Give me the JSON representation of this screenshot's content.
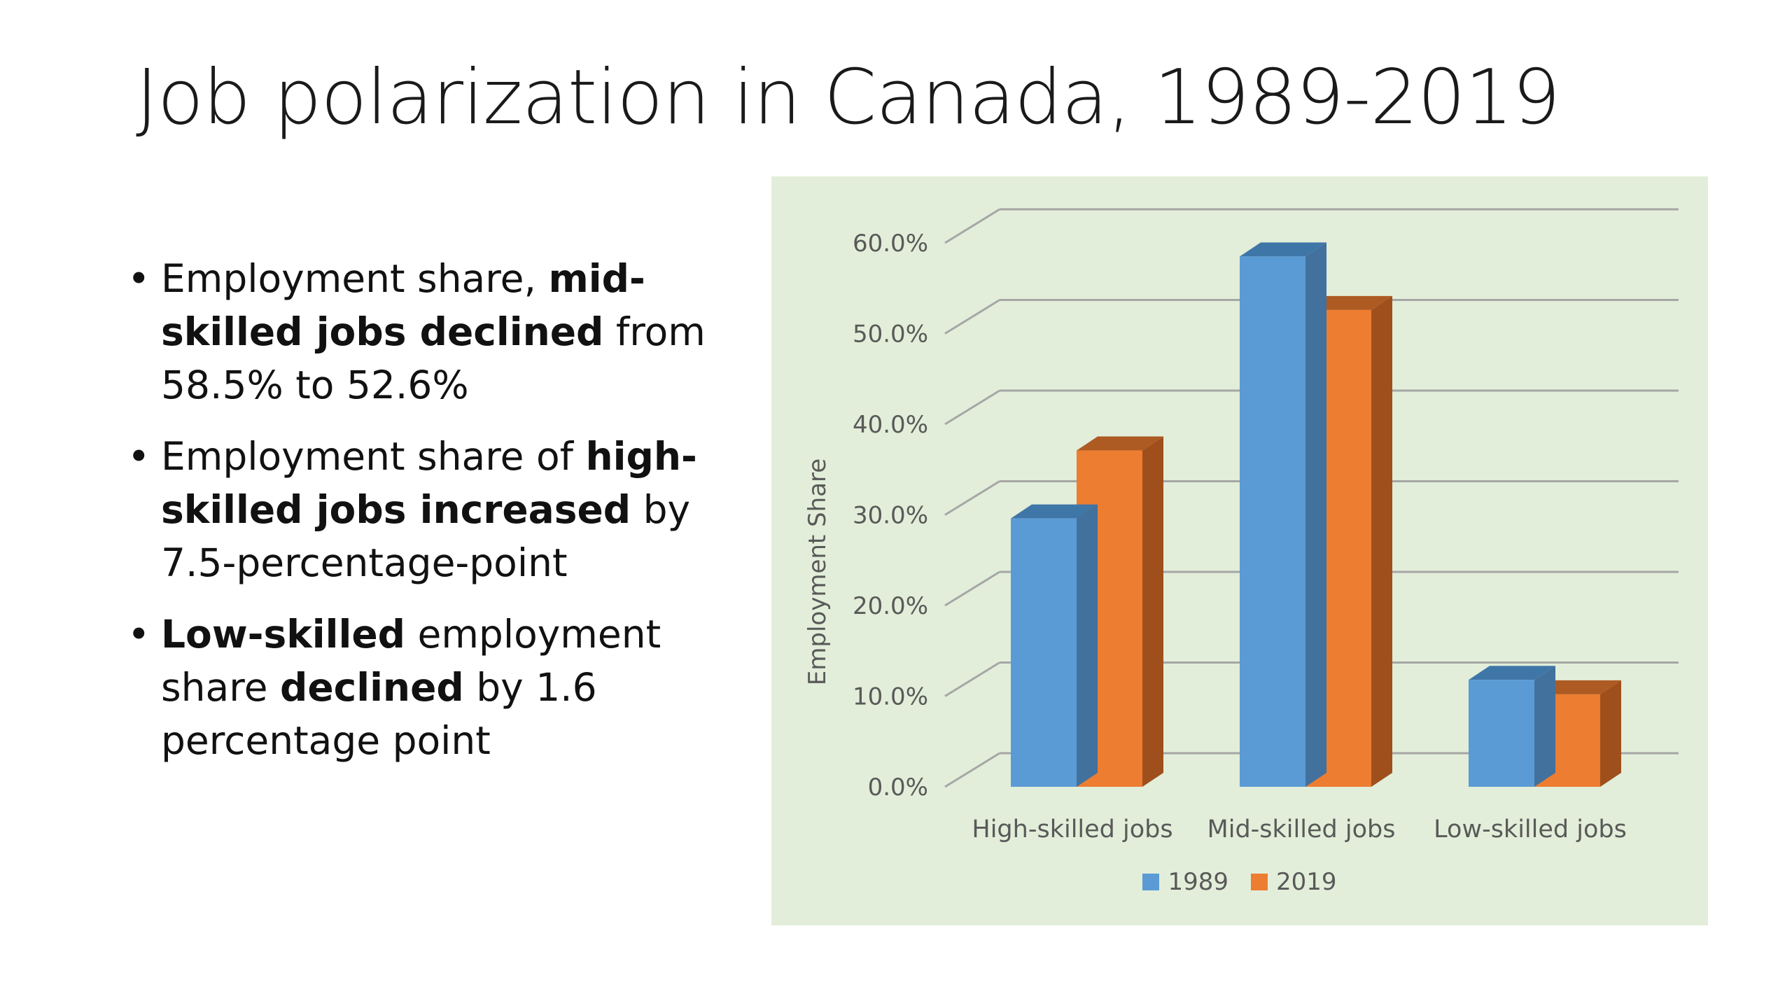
{
  "slide": {
    "title": "Job polarization in Canada, 1989-2019",
    "bullets": [
      [
        {
          "text": "Employment share, ",
          "bold": false
        },
        {
          "text": "mid-skilled jobs declined",
          "bold": true
        },
        {
          "text": " from 58.5% to 52.6%",
          "bold": false
        }
      ],
      [
        {
          "text": "Employment share of ",
          "bold": false
        },
        {
          "text": "high-skilled jobs increased",
          "bold": true
        },
        {
          "text": " by 7.5-percentage-point",
          "bold": false
        }
      ],
      [
        {
          "text": "Low-skilled",
          "bold": true
        },
        {
          "text": " employment share ",
          "bold": false
        },
        {
          "text": "declined",
          "bold": true
        },
        {
          "text": " by 1.6 percentage point",
          "bold": false
        }
      ]
    ]
  },
  "chart_data": {
    "type": "bar",
    "style": "3d-clustered-column",
    "categories": [
      "High-skilled jobs",
      "Mid-skilled jobs",
      "Low-skilled jobs"
    ],
    "series": [
      {
        "name": "1989",
        "values": [
          29.6,
          58.5,
          11.8
        ],
        "color": "#5b9bd5",
        "side_color": "#41719c",
        "top_color": "#3f76a8"
      },
      {
        "name": "2019",
        "values": [
          37.1,
          52.6,
          10.2
        ],
        "color": "#ed7d31",
        "side_color": "#9f4f1b",
        "top_color": "#ae5a23"
      }
    ],
    "ylabel": "Employment Share",
    "ylim": [
      0,
      60
    ],
    "yticks": [
      "0.0%",
      "10.0%",
      "20.0%",
      "30.0%",
      "40.0%",
      "50.0%",
      "60.0%"
    ],
    "grid": true,
    "legend_position": "bottom",
    "background_color": "#e2eed9",
    "gridline_color": "#a6a6a6",
    "text_color": "#595959"
  }
}
